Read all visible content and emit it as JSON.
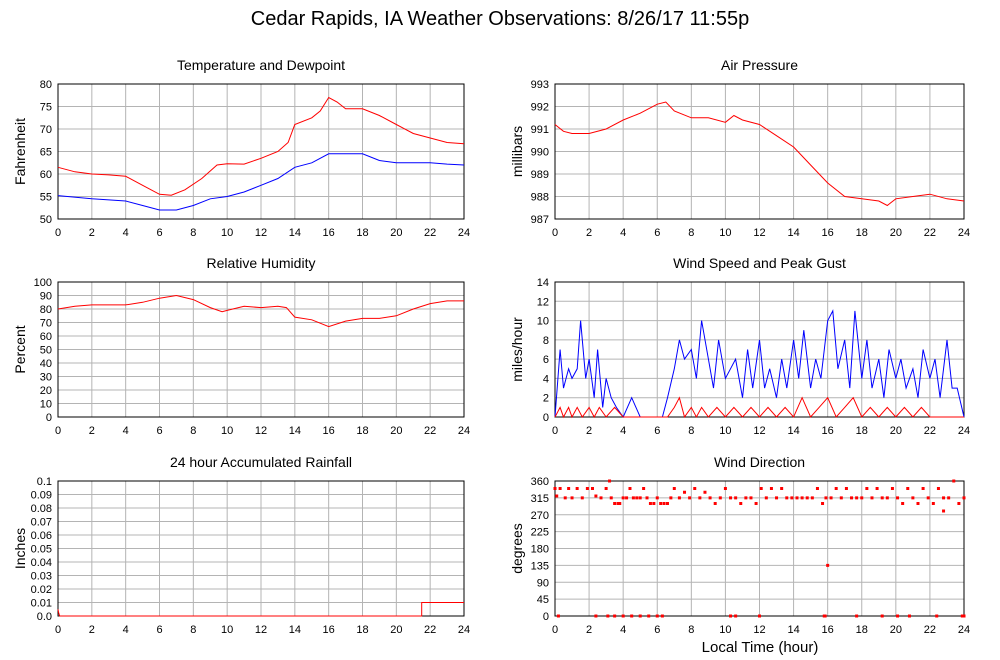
{
  "page": {
    "title": "Cedar Rapids, IA Weather Observations: 8/26/17 11:55p",
    "x_axis_label": "Local Time (hour)"
  },
  "colors": {
    "red": "#ff0000",
    "blue": "#0000ff",
    "grid": "#b4b4b4",
    "frame": "#000000"
  },
  "chart_data": [
    {
      "type": "line",
      "title": "Temperature and Dewpoint",
      "xlabel": "",
      "ylabel": "Fahrenheit",
      "xlim": [
        0,
        24
      ],
      "ylim": [
        50,
        80
      ],
      "x_ticks": [
        0,
        2,
        4,
        6,
        8,
        10,
        12,
        14,
        16,
        18,
        20,
        22,
        24
      ],
      "y_ticks": [
        50,
        55,
        60,
        65,
        70,
        75,
        80
      ],
      "grid": true,
      "series": [
        {
          "color": "#ff0000",
          "x": [
            0,
            1,
            2,
            3,
            4,
            5,
            6,
            6.7,
            7.5,
            8.5,
            9.4,
            10,
            11,
            12,
            13,
            13.6,
            14,
            15,
            15.5,
            16,
            16.5,
            17,
            18,
            19,
            20,
            21,
            22,
            23,
            24
          ],
          "y": [
            61.5,
            60.5,
            60,
            59.8,
            59.5,
            57.5,
            55.5,
            55.3,
            56.5,
            59,
            62,
            62.3,
            62.2,
            63.5,
            65,
            67,
            71,
            72.5,
            74,
            77,
            76,
            74.5,
            74.5,
            73,
            71,
            69,
            68,
            67,
            66.7
          ]
        },
        {
          "color": "#0000ff",
          "x": [
            0,
            2,
            4,
            5,
            6,
            7,
            8,
            9,
            10,
            11,
            12,
            13,
            14,
            15,
            16,
            17,
            18,
            19,
            20,
            21,
            22,
            23,
            24
          ],
          "y": [
            55.2,
            54.5,
            54,
            53,
            52,
            52,
            53,
            54.5,
            55,
            56,
            57.5,
            59,
            61.5,
            62.5,
            64.5,
            64.5,
            64.5,
            63,
            62.5,
            62.5,
            62.5,
            62.2,
            62
          ]
        }
      ]
    },
    {
      "type": "line",
      "title": "Air Pressure",
      "xlabel": "",
      "ylabel": "millibars",
      "xlim": [
        0,
        24
      ],
      "ylim": [
        987,
        993
      ],
      "x_ticks": [
        0,
        2,
        4,
        6,
        8,
        10,
        12,
        14,
        16,
        18,
        20,
        22,
        24
      ],
      "y_ticks": [
        987,
        988,
        989,
        990,
        991,
        992,
        993
      ],
      "grid": true,
      "series": [
        {
          "color": "#ff0000",
          "x": [
            0,
            0.5,
            1,
            2,
            3,
            4,
            5,
            6,
            6.5,
            7,
            8,
            9,
            10,
            10.5,
            11,
            12,
            13,
            14,
            14.5,
            15,
            16,
            17,
            18,
            19,
            19.5,
            20,
            21,
            22,
            23,
            24
          ],
          "y": [
            991.2,
            990.9,
            990.8,
            990.8,
            991,
            991.4,
            991.7,
            992.1,
            992.2,
            991.8,
            991.5,
            991.5,
            991.3,
            991.6,
            991.4,
            991.2,
            990.7,
            990.2,
            989.8,
            989.4,
            988.6,
            988,
            987.9,
            987.8,
            987.6,
            987.9,
            988,
            988.1,
            987.9,
            987.8
          ]
        }
      ]
    },
    {
      "type": "line",
      "title": "Relative Humidity",
      "xlabel": "",
      "ylabel": "Percent",
      "xlim": [
        0,
        24
      ],
      "ylim": [
        0,
        100
      ],
      "x_ticks": [
        0,
        2,
        4,
        6,
        8,
        10,
        12,
        14,
        16,
        18,
        20,
        22,
        24
      ],
      "y_ticks": [
        0,
        10,
        20,
        30,
        40,
        50,
        60,
        70,
        80,
        90,
        100
      ],
      "grid": true,
      "series": [
        {
          "color": "#ff0000",
          "x": [
            0,
            1,
            2,
            3,
            4,
            5,
            6,
            7,
            8,
            9,
            9.7,
            10,
            11,
            12,
            13,
            13.5,
            14,
            15,
            16,
            17,
            18,
            19,
            20,
            21,
            22,
            23,
            24
          ],
          "y": [
            80,
            82,
            83,
            83,
            83,
            85,
            88,
            90,
            87,
            81,
            78,
            79,
            82,
            81,
            82,
            81,
            74,
            72,
            67,
            71,
            73,
            73,
            75,
            80,
            84,
            86,
            86
          ]
        }
      ]
    },
    {
      "type": "line",
      "title": "Wind Speed and Peak Gust",
      "xlabel": "",
      "ylabel": "miles/hour",
      "xlim": [
        0,
        24
      ],
      "ylim": [
        0,
        14
      ],
      "x_ticks": [
        0,
        2,
        4,
        6,
        8,
        10,
        12,
        14,
        16,
        18,
        20,
        22,
        24
      ],
      "y_ticks": [
        0,
        2,
        4,
        6,
        8,
        10,
        12,
        14
      ],
      "grid": true,
      "series": [
        {
          "color": "#0000ff",
          "x": [
            0,
            0.3,
            0.5,
            0.8,
            1,
            1.3,
            1.5,
            1.8,
            2,
            2.3,
            2.5,
            2.8,
            3,
            3.3,
            3.6,
            4,
            4.5,
            5,
            5.5,
            6,
            6.3,
            6.6,
            7,
            7.3,
            7.6,
            8,
            8.3,
            8.6,
            9,
            9.3,
            9.6,
            10,
            10.3,
            10.6,
            11,
            11.3,
            11.6,
            12,
            12.3,
            12.6,
            13,
            13.3,
            13.6,
            14,
            14.3,
            14.6,
            15,
            15.3,
            15.6,
            16,
            16.3,
            16.6,
            17,
            17.3,
            17.6,
            18,
            18.3,
            18.6,
            19,
            19.3,
            19.6,
            20,
            20.3,
            20.6,
            21,
            21.3,
            21.6,
            22,
            22.3,
            22.6,
            23,
            23.3,
            23.6,
            24
          ],
          "y": [
            0,
            7,
            3,
            5,
            4,
            5,
            10,
            4,
            6,
            2,
            7,
            1,
            4,
            2,
            1,
            0,
            2,
            0,
            0,
            0,
            0,
            2,
            5,
            8,
            6,
            7,
            4,
            10,
            6,
            3,
            8,
            4,
            5,
            6,
            2,
            7,
            3,
            8,
            3,
            5,
            2,
            6,
            3,
            8,
            4,
            9,
            3,
            6,
            4,
            10,
            11,
            5,
            8,
            3,
            11,
            4,
            8,
            3,
            6,
            2,
            7,
            4,
            6,
            3,
            5,
            2,
            7,
            4,
            6,
            2,
            8,
            3,
            3,
            0
          ]
        },
        {
          "color": "#ff0000",
          "x": [
            0,
            0.3,
            0.5,
            0.8,
            1,
            1.3,
            1.6,
            2,
            2.3,
            2.6,
            3,
            3.5,
            4,
            6,
            6.6,
            7,
            7.3,
            7.6,
            8,
            8.3,
            8.6,
            9,
            9.5,
            10,
            10.5,
            11,
            11.5,
            12,
            12.5,
            13,
            13.5,
            14,
            14.5,
            15,
            15.5,
            16,
            16.5,
            17,
            17.5,
            18,
            18.5,
            19,
            19.5,
            20,
            20.5,
            21,
            21.5,
            22,
            22.5,
            23,
            23.5,
            24
          ],
          "y": [
            0,
            1,
            0,
            1,
            0,
            1,
            0,
            1,
            0,
            1,
            0,
            1,
            0,
            0,
            0,
            1,
            2,
            0,
            1,
            0,
            1,
            0,
            1,
            0,
            1,
            0,
            1,
            0,
            1,
            0,
            1,
            0,
            2,
            0,
            1,
            2,
            0,
            1,
            2,
            0,
            1,
            0,
            1,
            0,
            1,
            0,
            1,
            0,
            0,
            0,
            0,
            0
          ]
        }
      ]
    },
    {
      "type": "line",
      "title": "24 hour Accumulated Rainfall",
      "xlabel": "",
      "ylabel": "Inches",
      "xlim": [
        0,
        24
      ],
      "ylim": [
        0,
        0.1
      ],
      "x_ticks": [
        0,
        2,
        4,
        6,
        8,
        10,
        12,
        14,
        16,
        18,
        20,
        22,
        24
      ],
      "y_ticks": [
        "0.0",
        "0.01",
        "0.02",
        "0.03",
        "0.04",
        "0.05",
        "0.06",
        "0.07",
        "0.08",
        "0.09",
        "0.1"
      ],
      "grid": true,
      "series": [
        {
          "color": "#ff0000",
          "x": [
            0,
            0.05,
            0.1,
            21.5,
            21.5,
            24
          ],
          "y": [
            0.005,
            0.002,
            0,
            0,
            0.01,
            0.01
          ]
        }
      ]
    },
    {
      "type": "scatter",
      "title": "Wind Direction",
      "xlabel": "Local Time (hour)",
      "ylabel": "degrees",
      "xlim": [
        0,
        24
      ],
      "ylim": [
        0,
        360
      ],
      "x_ticks": [
        0,
        2,
        4,
        6,
        8,
        10,
        12,
        14,
        16,
        18,
        20,
        22,
        24
      ],
      "y_ticks": [
        0,
        45,
        90,
        135,
        180,
        225,
        270,
        315,
        360
      ],
      "grid": true,
      "series": [
        {
          "color": "#ff0000",
          "x": [
            0,
            0.1,
            0.3,
            0.6,
            0.8,
            1,
            1.3,
            1.6,
            1.9,
            2.2,
            2.4,
            2.7,
            3,
            3.2,
            3.3,
            3.5,
            3.7,
            3.8,
            4,
            4.2,
            4.4,
            4.6,
            4.8,
            5,
            5.2,
            5.4,
            5.6,
            5.8,
            6,
            6.2,
            6.4,
            6.6,
            6.8,
            7,
            7.3,
            7.6,
            7.9,
            8.2,
            8.5,
            8.8,
            9.1,
            9.4,
            9.7,
            10,
            10.3,
            10.6,
            10.9,
            11.2,
            11.5,
            11.8,
            12.1,
            12.4,
            12.7,
            13,
            13.3,
            13.6,
            13.9,
            14.2,
            14.5,
            14.8,
            15.1,
            15.4,
            15.7,
            15.9,
            16,
            16.2,
            16.5,
            16.8,
            17.1,
            17.4,
            17.7,
            18,
            18.3,
            18.6,
            18.9,
            19.2,
            19.5,
            19.8,
            20.1,
            20.4,
            20.7,
            21,
            21.3,
            21.6,
            21.9,
            22.2,
            22.5,
            22.8,
            23.1,
            23.4,
            23.7,
            24,
            0.2,
            2.4,
            3.1,
            3.5,
            4,
            4.5,
            5,
            5.5,
            6,
            6.3,
            10.3,
            10.6,
            12,
            15.8,
            15.85,
            17.7,
            19.2,
            20.1,
            20.8,
            22.4,
            23.9,
            24,
            22.8
          ],
          "y": [
            340,
            320,
            340,
            315,
            340,
            315,
            340,
            315,
            340,
            340,
            320,
            315,
            340,
            360,
            315,
            300,
            300,
            300,
            315,
            315,
            340,
            315,
            315,
            315,
            340,
            315,
            300,
            300,
            315,
            300,
            300,
            300,
            315,
            340,
            315,
            330,
            315,
            340,
            315,
            330,
            315,
            300,
            315,
            340,
            315,
            315,
            300,
            315,
            315,
            300,
            340,
            315,
            340,
            315,
            340,
            315,
            315,
            315,
            315,
            315,
            315,
            340,
            300,
            315,
            135,
            315,
            340,
            315,
            340,
            315,
            315,
            315,
            340,
            315,
            340,
            315,
            315,
            340,
            315,
            300,
            340,
            315,
            300,
            340,
            315,
            300,
            340,
            280,
            315,
            360,
            300,
            315,
            0,
            0,
            0,
            0,
            0,
            0,
            0,
            0,
            0,
            0,
            0,
            0,
            0,
            0,
            0,
            0,
            0,
            0,
            0,
            0,
            0,
            0,
            315
          ]
        }
      ]
    }
  ]
}
